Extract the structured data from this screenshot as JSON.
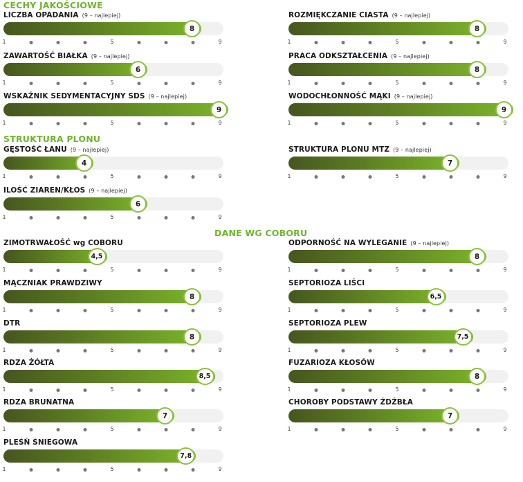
{
  "sections": {
    "quality": "CECHY JAKOŚCIOWE",
    "structure": "STRUKTURA PLONU",
    "coboru": "DANE WG COBORU"
  },
  "tick_labels": [
    "1",
    "5",
    "9"
  ],
  "chart_data": {
    "type": "bar",
    "scale": [
      1,
      9
    ],
    "note": "(9 – najlepiej)",
    "items": [
      {
        "id": "liczba-opadania",
        "label": "LICZBA OPADANIA",
        "value": 8,
        "display": "8",
        "note": "(9 – najlepiej)",
        "section": "CECHY JAKOŚCIOWE"
      },
      {
        "id": "rozmiekczanie-ciasta",
        "label": "ROZMIĘKCZANIE  CIASTA",
        "value": 8,
        "display": "8",
        "note": "(9 – najlepiej)",
        "section": "CECHY JAKOŚCIOWE"
      },
      {
        "id": "zawartosc-bialka",
        "label": "ZAWARTOŚĆ BIAŁKA",
        "value": 6,
        "display": "6",
        "note": "(9 – najlepiej)",
        "section": "CECHY JAKOŚCIOWE"
      },
      {
        "id": "praca-odksztalcenia",
        "label": "PRACA ODKSZTAŁCENIA",
        "value": 8,
        "display": "8",
        "note": "(9 – najlepiej)",
        "section": "CECHY JAKOŚCIOWE"
      },
      {
        "id": "wskaznik-sds",
        "label": "WSKAŹNIK SEDYMENTACYJNY SDS",
        "value": 9,
        "display": "9",
        "note": "(9 – najlepiej)",
        "section": "CECHY JAKOŚCIOWE"
      },
      {
        "id": "wodochlonnosc-maki",
        "label": "WODOCHŁONNOŚĆ MĄKI",
        "value": 9,
        "display": "9",
        "note": "(9 – najlepiej)",
        "section": "CECHY JAKOŚCIOWE"
      },
      {
        "id": "gestosc-lanu",
        "label": "GĘSTOŚĆ ŁANU",
        "value": 4,
        "display": "4",
        "note": "(9 – najlepiej)",
        "section": "STRUKTURA PLONU"
      },
      {
        "id": "struktura-plonu-mtz",
        "label": "STRUKTURA PLONU MTZ",
        "value": 7,
        "display": "7",
        "note": "(9 – najlepiej)",
        "section": "STRUKTURA PLONU"
      },
      {
        "id": "ilosc-ziaren",
        "label": "ILOŚĆ ZIAREN/KŁOS",
        "value": 6,
        "display": "6",
        "note": "(9 – najlepiej)",
        "section": "STRUKTURA PLONU"
      },
      {
        "id": "zimotrwalosc",
        "label": "ZIMOTRWAŁOŚĆ wg COBORU",
        "value": 4.5,
        "display": "4,5",
        "note": "",
        "section": "DANE WG COBORU"
      },
      {
        "id": "odpornosc-na-wyleganie",
        "label": "ODPORNOŚĆ NA WYLEGANIE",
        "value": 8,
        "display": "8",
        "note": "(9 – najlepiej)",
        "section": "DANE WG COBORU"
      },
      {
        "id": "maczniak-prawdziwy",
        "label": "MĄCZNIAK PRAWDZIWY",
        "value": 8,
        "display": "8",
        "note": "",
        "section": "DANE WG COBORU"
      },
      {
        "id": "septorioza-lisci",
        "label": "SEPTORIOZA LIŚCI",
        "value": 6.5,
        "display": "6,5",
        "note": "",
        "section": "DANE WG COBORU"
      },
      {
        "id": "dtr",
        "label": "DTR",
        "value": 8,
        "display": "8",
        "note": "",
        "section": "DANE WG COBORU"
      },
      {
        "id": "septorioza-plew",
        "label": "SEPTORIOZA PLEW",
        "value": 7.5,
        "display": "7,5",
        "note": "",
        "section": "DANE WG COBORU"
      },
      {
        "id": "rdza-zolta",
        "label": "RDZA ŻÓŁTA",
        "value": 8.5,
        "display": "8,5",
        "note": "",
        "section": "DANE WG COBORU"
      },
      {
        "id": "fuzarioza-klosow",
        "label": "FUZARIOZA KŁOSÓW",
        "value": 8,
        "display": "8",
        "note": "",
        "section": "DANE WG COBORU"
      },
      {
        "id": "rdza-brunatna",
        "label": "RDZA BRUNATNA",
        "value": 7,
        "display": "7",
        "note": "",
        "section": "DANE WG COBORU"
      },
      {
        "id": "choroby-podstawy",
        "label": "CHOROBY PODSTAWY ŹDŹBŁA",
        "value": 7,
        "display": "7",
        "note": "",
        "section": "DANE WG COBORU"
      },
      {
        "id": "plesn-sniegowa",
        "label": "PLEŚŃ ŚNIEGOWA",
        "value": 7.8,
        "display": "7,8",
        "note": "",
        "section": "DANE WG COBORU"
      }
    ]
  },
  "colors": {
    "accent": "#6fb52c",
    "bar_dark": "#46561f",
    "bar_light": "#7db52b",
    "track": "#f1f1f1"
  }
}
